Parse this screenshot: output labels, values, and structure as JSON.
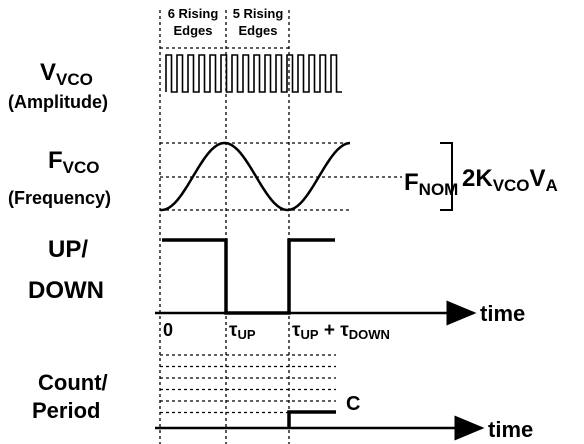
{
  "edges_left": [
    "6 Rising",
    "Edges"
  ],
  "edges_right": [
    "5 Rising",
    "Edges"
  ],
  "vco": {
    "symbol": "V",
    "subscript": "VCO",
    "caption": "(Amplitude)"
  },
  "fvco": {
    "symbol": "F",
    "subscript": "VCO",
    "caption": "(Frequency)"
  },
  "fnom": {
    "symbol": "F",
    "subscript": "NOM"
  },
  "swing": {
    "prefix": "2K",
    "subscript": "VCO",
    "middle": "V",
    "subscript2": "A"
  },
  "updown": [
    "UP/",
    "DOWN"
  ],
  "axis_label": "time",
  "time_marks": {
    "zero": "0",
    "tau": "τ",
    "tau_sub": "UP",
    "plus": " + ",
    "tau2": "τ",
    "tau2_sub": "DOWN"
  },
  "count": [
    "Count/",
    "Period"
  ],
  "count_label": "C",
  "axis_label_2": "time"
}
